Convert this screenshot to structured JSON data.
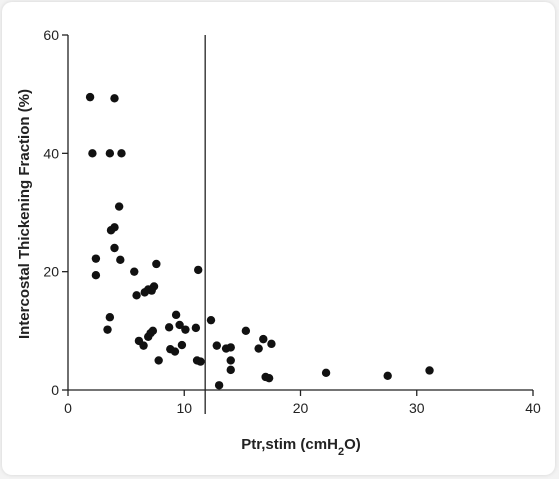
{
  "chart_data": {
    "type": "scatter",
    "title": "",
    "xlabel": {
      "main": "Ptr,stim (cmH",
      "sub": "2",
      "tail": "O)"
    },
    "ylabel": "Intercostal Thickening Fraction (%)",
    "xlim": [
      0,
      40
    ],
    "ylim": [
      0,
      60
    ],
    "x_ticks": [
      0,
      10,
      20,
      30,
      40
    ],
    "y_ticks": [
      0,
      20,
      40,
      60
    ],
    "reference_line_x": 11.8,
    "grid": false,
    "legend": "none",
    "marker_color": "#111111",
    "points": [
      [
        1.9,
        49.5
      ],
      [
        4.0,
        49.3
      ],
      [
        2.1,
        40.0
      ],
      [
        3.6,
        40.0
      ],
      [
        4.6,
        40.0
      ],
      [
        4.4,
        31.0
      ],
      [
        3.7,
        27.0
      ],
      [
        4.0,
        27.5
      ],
      [
        4.0,
        24.0
      ],
      [
        2.4,
        22.2
      ],
      [
        4.5,
        22.0
      ],
      [
        2.4,
        19.4
      ],
      [
        5.7,
        20.0
      ],
      [
        7.6,
        21.3
      ],
      [
        11.2,
        20.3
      ],
      [
        5.9,
        16.0
      ],
      [
        6.6,
        16.5
      ],
      [
        6.9,
        17.0
      ],
      [
        7.4,
        17.5
      ],
      [
        7.2,
        16.8
      ],
      [
        3.6,
        12.3
      ],
      [
        3.4,
        10.2
      ],
      [
        6.1,
        8.3
      ],
      [
        6.5,
        7.5
      ],
      [
        6.9,
        9.0
      ],
      [
        7.1,
        9.6
      ],
      [
        7.3,
        10.0
      ],
      [
        9.3,
        12.7
      ],
      [
        8.7,
        10.6
      ],
      [
        9.6,
        11.0
      ],
      [
        10.1,
        10.2
      ],
      [
        11.0,
        10.5
      ],
      [
        12.3,
        11.8
      ],
      [
        7.8,
        5.0
      ],
      [
        8.8,
        6.9
      ],
      [
        9.2,
        6.5
      ],
      [
        9.8,
        7.6
      ],
      [
        11.1,
        5.0
      ],
      [
        11.4,
        4.8
      ],
      [
        12.8,
        7.5
      ],
      [
        13.6,
        7.0
      ],
      [
        14.0,
        7.2
      ],
      [
        14.0,
        5.0
      ],
      [
        14.0,
        3.4
      ],
      [
        15.3,
        10.0
      ],
      [
        16.4,
        7.0
      ],
      [
        16.8,
        8.6
      ],
      [
        17.5,
        7.8
      ],
      [
        17.0,
        2.2
      ],
      [
        17.3,
        2.0
      ],
      [
        13.0,
        0.8
      ],
      [
        22.2,
        2.9
      ],
      [
        27.5,
        2.4
      ],
      [
        31.1,
        3.3
      ]
    ]
  }
}
